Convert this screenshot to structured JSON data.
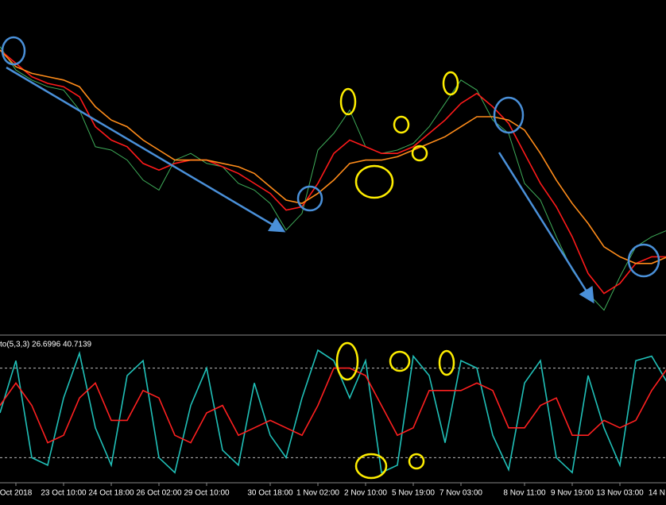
{
  "chart_data": [
    {
      "type": "line",
      "categories": [
        null,
        "Oct 2018",
        null,
        null,
        "23 Oct 10:00",
        null,
        null,
        "24 Oct 18:00",
        null,
        null,
        "26 Oct 02:00",
        null,
        null,
        "29 Oct 10:00",
        null,
        null,
        null,
        "30 Oct 18:00",
        null,
        null,
        "1 Nov 02:00",
        null,
        null,
        "2 Nov 10:00",
        null,
        null,
        "5 Nov 19:00",
        null,
        null,
        "7 Nov 03:00",
        null,
        null,
        null,
        "8 Nov 11:00",
        null,
        null,
        "9 Nov 19:00",
        null,
        null,
        "13 Nov 03:00",
        null,
        null,
        "14 N"
      ],
      "ylim": [
        0,
        100
      ],
      "series": [
        {
          "color": "#3fae5a",
          "values": [
            86,
            79,
            76,
            74,
            73,
            67,
            56,
            55,
            52,
            46,
            43,
            52,
            54,
            51,
            50,
            45,
            43,
            39,
            31,
            36,
            55,
            60,
            67,
            56,
            54,
            55,
            57,
            62,
            69,
            76,
            73,
            64,
            60,
            45,
            40,
            29,
            19,
            12,
            7,
            17,
            26,
            29,
            31
          ]
        },
        {
          "color": "#ff1a1a",
          "values": [
            85,
            81,
            77,
            75,
            74,
            71,
            62,
            58,
            56,
            51,
            49,
            51,
            52,
            52,
            50,
            48,
            45,
            42,
            37,
            38,
            45,
            54,
            58,
            56,
            54,
            54,
            56,
            60,
            64,
            69,
            72,
            68,
            63,
            54,
            45,
            38,
            29,
            18,
            12,
            15,
            21,
            23,
            23
          ]
        },
        {
          "color": "#ff8c1a",
          "values": [
            85,
            80,
            78,
            77,
            76,
            74,
            68,
            64,
            62,
            58,
            55,
            52,
            52,
            52,
            51,
            50,
            48,
            44,
            40,
            39,
            42,
            46,
            51,
            52,
            52,
            53,
            55,
            57,
            59,
            62,
            65,
            65,
            64,
            61,
            54,
            46,
            39,
            33,
            26,
            23,
            21,
            21,
            23
          ]
        }
      ]
    },
    {
      "type": "line",
      "title": "to(5,3,3) 26.6996 40.7139",
      "ylim": [
        0,
        100
      ],
      "levels": [
        20,
        80
      ],
      "series": [
        {
          "color": "#20c0b8",
          "values": [
            50,
            85,
            20,
            15,
            60,
            90,
            40,
            15,
            75,
            85,
            20,
            10,
            55,
            80,
            25,
            15,
            70,
            35,
            20,
            60,
            92,
            85,
            60,
            85,
            10,
            15,
            88,
            75,
            30,
            85,
            80,
            35,
            12,
            70,
            85,
            20,
            10,
            75,
            40,
            15,
            85,
            88,
            70
          ]
        },
        {
          "color": "#ff2020",
          "values": [
            55,
            70,
            55,
            30,
            35,
            60,
            70,
            45,
            45,
            65,
            60,
            35,
            30,
            50,
            55,
            35,
            40,
            45,
            40,
            35,
            55,
            80,
            80,
            75,
            55,
            35,
            40,
            65,
            65,
            65,
            70,
            65,
            40,
            40,
            55,
            60,
            35,
            35,
            45,
            40,
            45,
            65,
            80
          ]
        }
      ]
    }
  ]
}
